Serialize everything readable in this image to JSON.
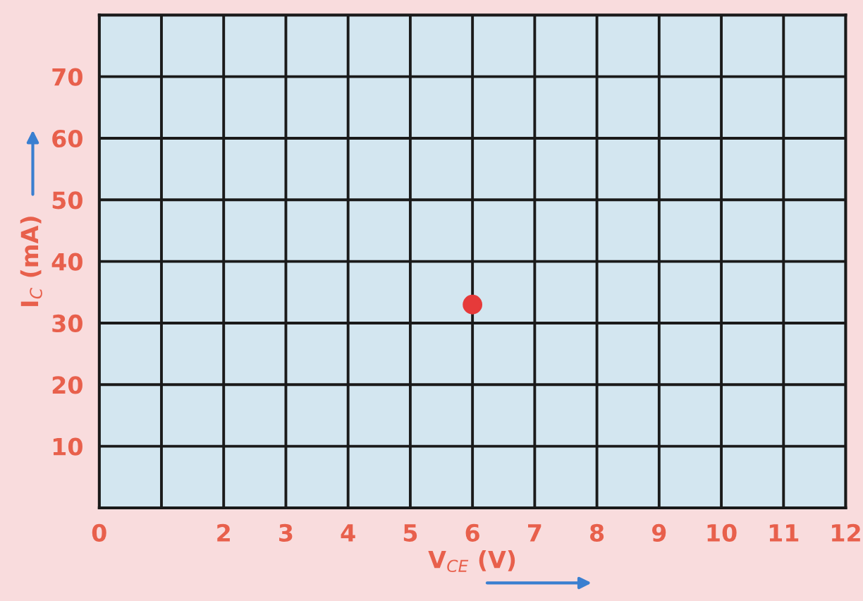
{
  "chart_data": {
    "type": "scatter",
    "xlabel": "V$_{CE}$ (V)",
    "ylabel": "I$_{C}$ (mA)",
    "x": [
      6
    ],
    "values": [
      33
    ],
    "color": "#e63a3a",
    "marker": "circle",
    "xlim": [
      0,
      12
    ],
    "ylim": [
      0,
      80
    ],
    "xticks": [
      0,
      {
        "value": 1,
        "label": null
      },
      2,
      3,
      4,
      5,
      6,
      7,
      8,
      9,
      10,
      11,
      12
    ],
    "yticks": [
      {
        "value": 0,
        "label": null
      },
      10,
      20,
      30,
      40,
      50,
      60,
      70,
      {
        "value": 80,
        "label": null
      }
    ],
    "grid": true
  }
}
